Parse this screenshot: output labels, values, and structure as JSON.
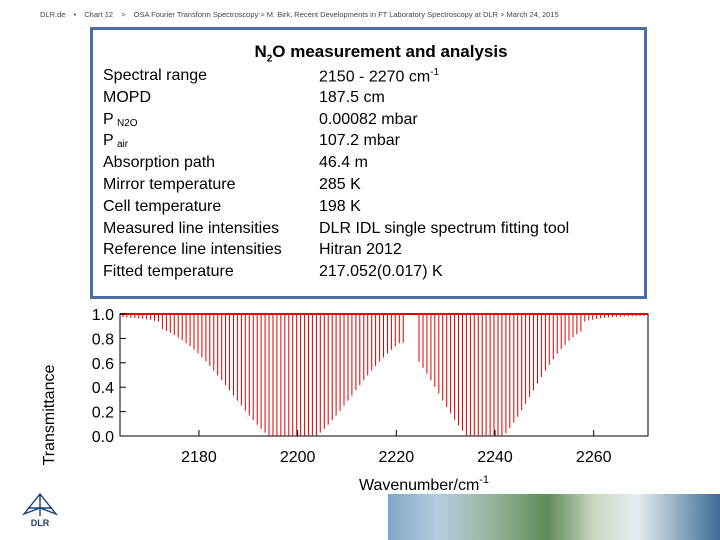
{
  "header": {
    "org": "DLR.de",
    "sep1": "•",
    "chart_num": "Chart 12",
    "sep2": ">",
    "title": "OSA Fourier Transform Spectroscopy > M. Birk, Recent Developments in FT Laboratory Spectroscopy at DLR > March 24, 2015"
  },
  "table": {
    "title_main": "N",
    "title_sub": "2",
    "title_rest": "O measurement and analysis",
    "rows": [
      {
        "label": "Spectral range",
        "value": "2150 - 2270 cm",
        "value_sup": "-1"
      },
      {
        "label": "MOPD",
        "value": "187.5 cm"
      },
      {
        "label": "P",
        "label_sub": "N2O",
        "value": "0.00082 mbar"
      },
      {
        "label": "P",
        "label_sub": "air",
        "value": "107.2 mbar"
      },
      {
        "label": "Absorption path",
        "value": "46.4 m"
      },
      {
        "label": "Mirror temperature",
        "value": "285 K"
      },
      {
        "label": "Cell temperature",
        "value": "198 K"
      },
      {
        "label": "Measured line intensities",
        "value": "DLR IDL single spectrum fitting tool"
      },
      {
        "label": "Reference line intensities",
        "value": "Hitran 2012"
      },
      {
        "label": "Fitted temperature",
        "value": "217.052(0.017) K"
      }
    ]
  },
  "chart_data": {
    "type": "line",
    "xlabel": "Wavenumber/cm",
    "xlabel_sup": "-1",
    "ylabel": "Transmittance",
    "xlim": [
      2164,
      2271
    ],
    "ylim": [
      0.0,
      1.0
    ],
    "xticks": [
      2180,
      2200,
      2220,
      2240,
      2260
    ],
    "yticks": [
      "0.0",
      "0.2",
      "0.4",
      "0.6",
      "0.8",
      "1.0"
    ],
    "series": [
      {
        "color": "#e00000"
      }
    ],
    "band_centers": [
      2199,
      2238
    ],
    "band_gap": 2223
  },
  "logo": {
    "text": "DLR"
  },
  "colors": {
    "border": "#4a6fa5",
    "spectrum": "#e00000"
  }
}
